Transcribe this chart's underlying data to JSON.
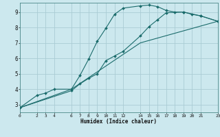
{
  "xlabel": "Humidex (Indice chaleur)",
  "bg_color": "#cce8ee",
  "grid_color": "#aaccd4",
  "line_color": "#1a6b6b",
  "xlim": [
    0,
    23
  ],
  "ylim": [
    2.5,
    9.6
  ],
  "xticks": [
    0,
    2,
    3,
    4,
    6,
    7,
    8,
    9,
    10,
    11,
    12,
    14,
    15,
    16,
    17,
    18,
    19,
    20,
    21,
    23
  ],
  "yticks": [
    3,
    4,
    5,
    6,
    7,
    8,
    9
  ],
  "line1_x": [
    0,
    2,
    3,
    4,
    6,
    7,
    8,
    9,
    10,
    11,
    12,
    14,
    15,
    16,
    17,
    18,
    19,
    20,
    21,
    23
  ],
  "line1_y": [
    2.8,
    3.6,
    3.75,
    4.0,
    4.0,
    4.9,
    5.95,
    7.1,
    7.95,
    8.85,
    9.25,
    9.4,
    9.45,
    9.35,
    9.1,
    9.0,
    9.0,
    8.85,
    8.75,
    8.4
  ],
  "line2_x": [
    0,
    6,
    14,
    23
  ],
  "line2_y": [
    2.8,
    4.0,
    7.0,
    8.4
  ],
  "line3_x": [
    0,
    6,
    7,
    8,
    9,
    10,
    11,
    12,
    14,
    15,
    16,
    17,
    19,
    21,
    23
  ],
  "line3_y": [
    2.8,
    3.9,
    4.35,
    4.7,
    5.0,
    5.85,
    6.15,
    6.45,
    7.45,
    8.05,
    8.5,
    8.95,
    9.0,
    8.75,
    8.4
  ]
}
